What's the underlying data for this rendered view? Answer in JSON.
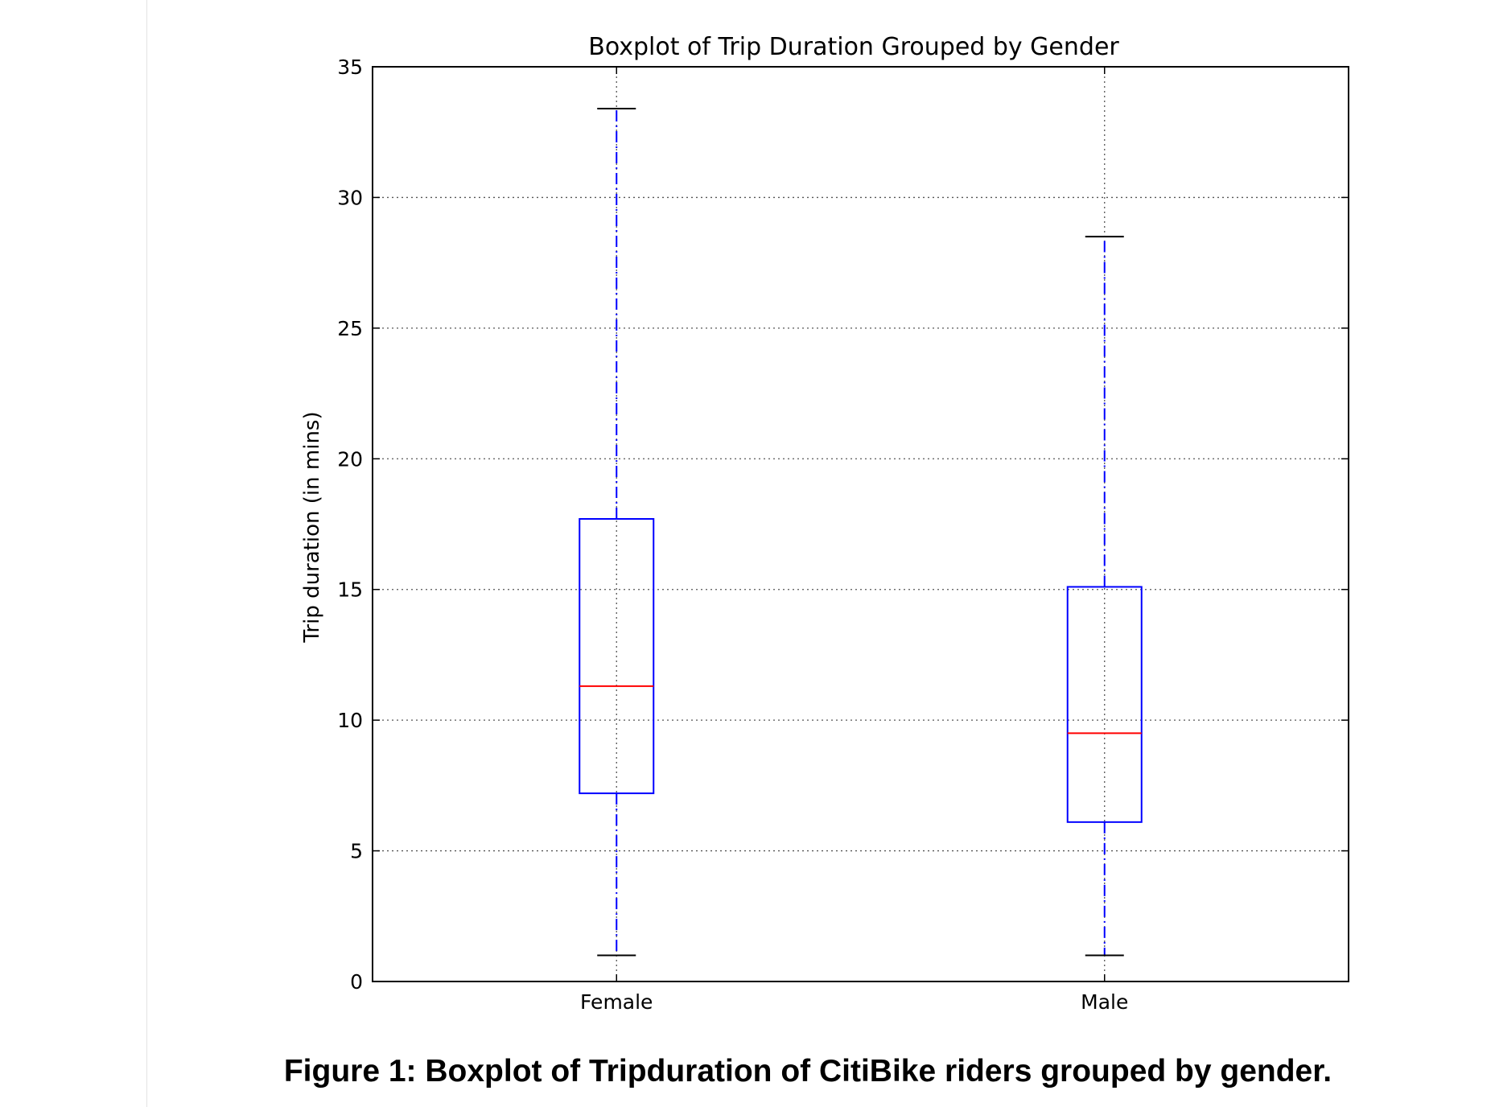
{
  "caption": "Figure 1: Boxplot of Tripduration of CitiBike riders grouped by gender.",
  "chart_data": {
    "type": "boxplot",
    "title": "Boxplot of Trip Duration Grouped by Gender",
    "xlabel": "",
    "ylabel": "Trip duration (in mins)",
    "ylim": [
      0,
      35
    ],
    "yticks": [
      "0",
      "5",
      "10",
      "15",
      "20",
      "25",
      "30",
      "35"
    ],
    "grid": true,
    "categories": [
      "Female",
      "Male"
    ],
    "boxes": [
      {
        "category": "Female",
        "whisker_low": 1.0,
        "q1": 7.2,
        "median": 11.3,
        "q3": 17.7,
        "whisker_high": 33.4
      },
      {
        "category": "Male",
        "whisker_low": 1.0,
        "q1": 6.1,
        "median": 9.5,
        "q3": 15.1,
        "whisker_high": 28.5
      }
    ],
    "colors": {
      "box": "#0000ff",
      "whisker": "#0000ff",
      "median": "#ff0000",
      "cap": "#000000",
      "grid": "#555555"
    }
  }
}
